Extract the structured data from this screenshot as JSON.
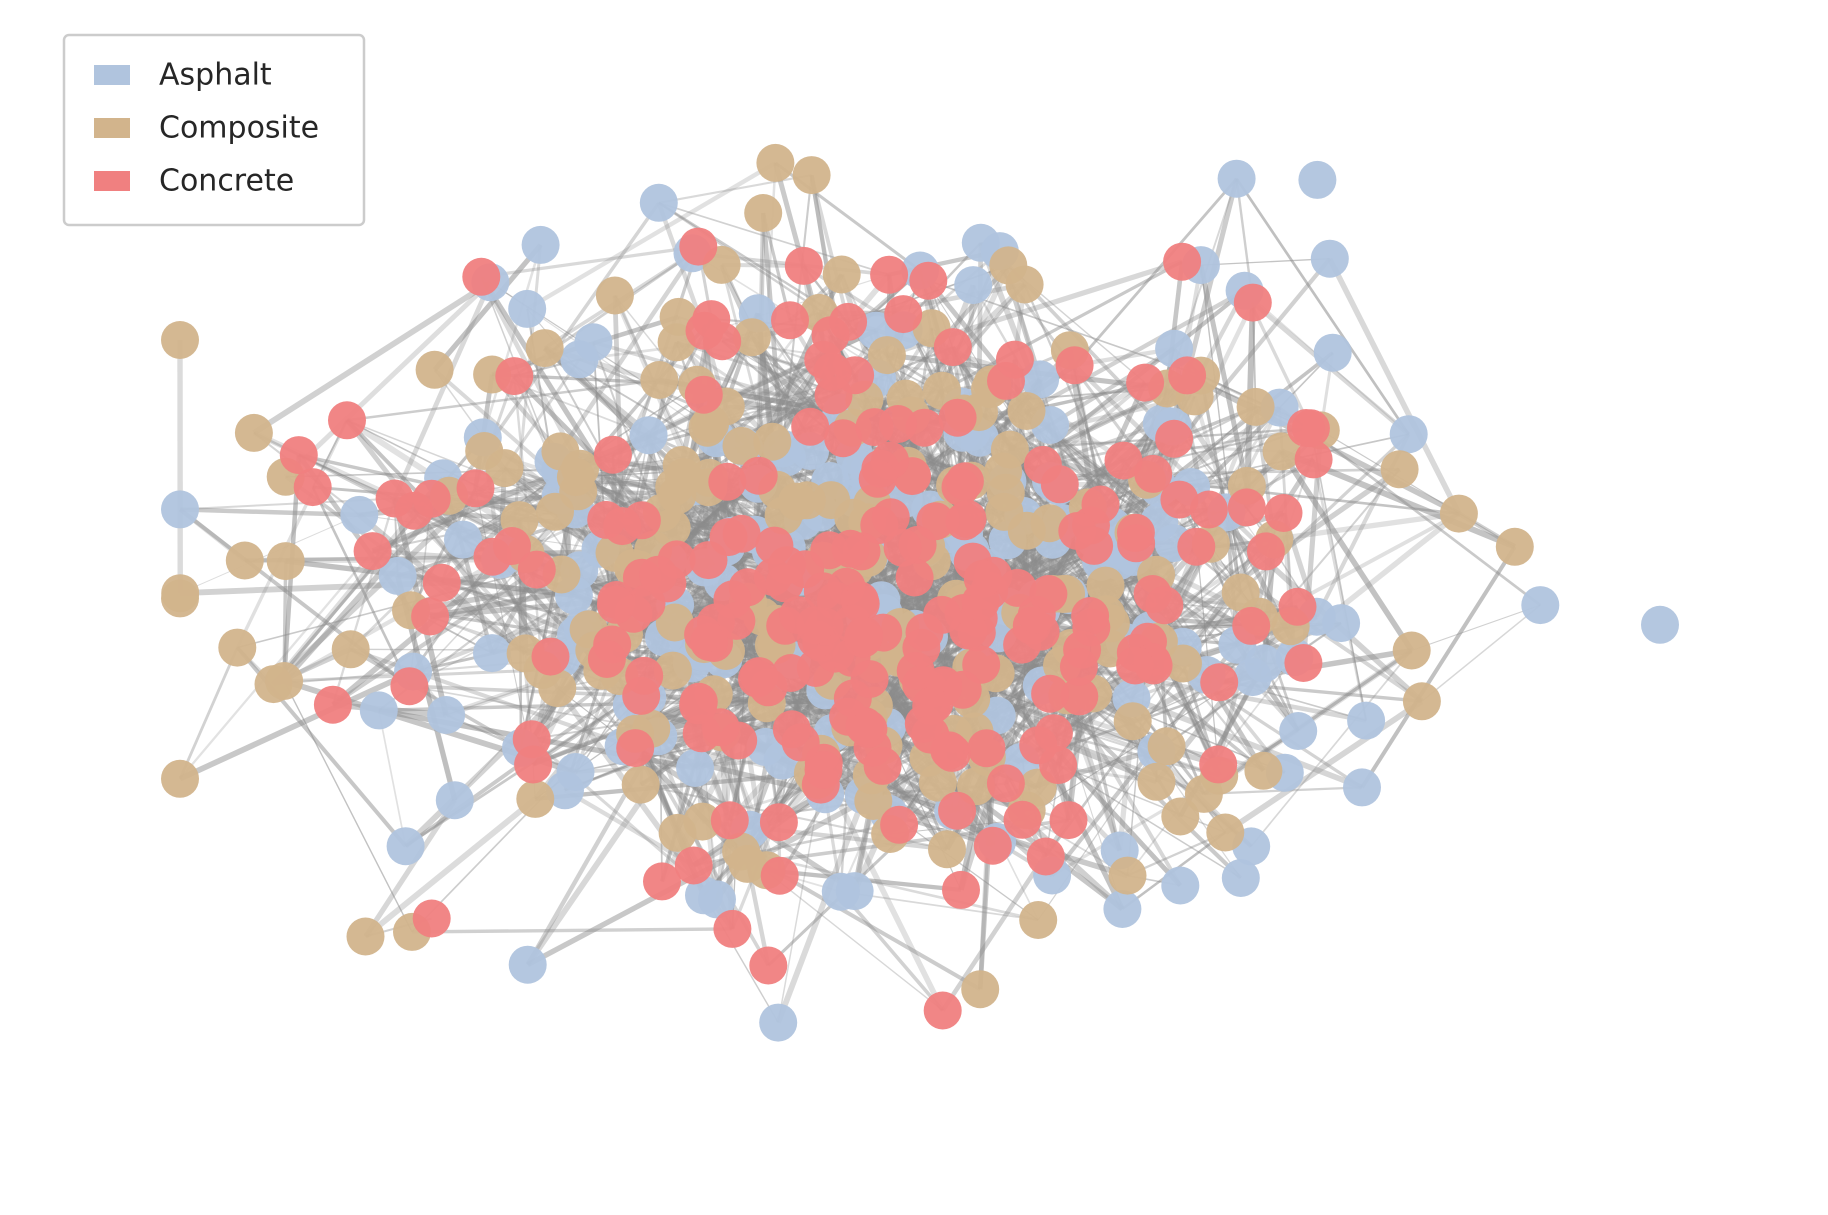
{
  "chart_data": {
    "type": "network",
    "series": [
      {
        "name": "Asphalt",
        "color": "#b0c4de"
      },
      {
        "name": "Composite",
        "color": "#d2b48c"
      },
      {
        "name": "Concrete",
        "color": "#f08080"
      }
    ],
    "legend": "upper left"
  }
}
